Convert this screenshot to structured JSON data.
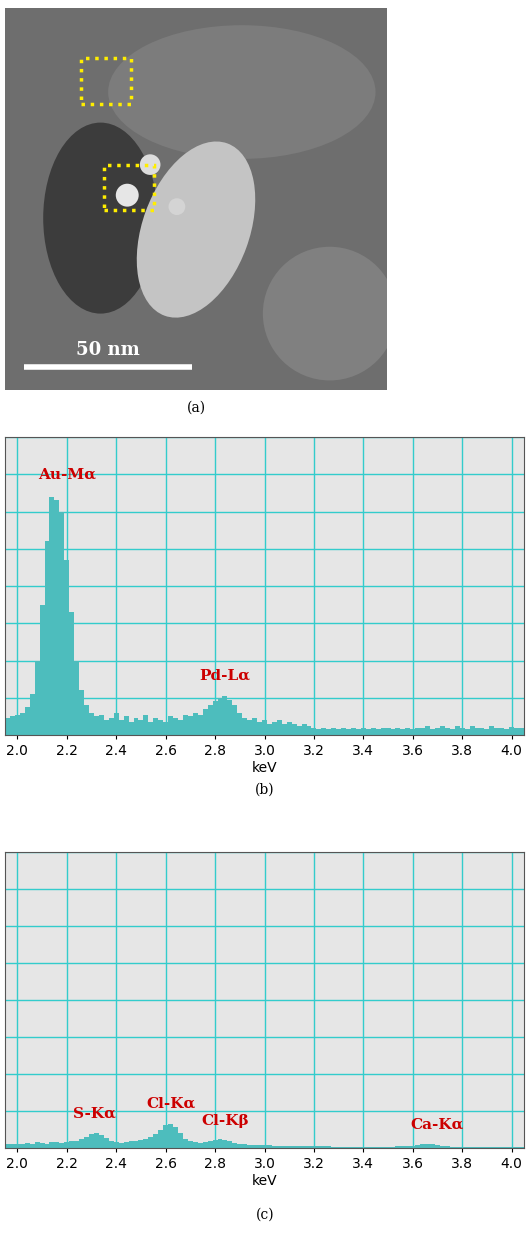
{
  "chart_data": [
    {
      "type": "image",
      "caption": "(a)",
      "scale_bar": "50 nm"
    },
    {
      "type": "bar",
      "caption": "(b)",
      "x_label": "keV",
      "color": "#4dbdbd",
      "grid": true,
      "tick_labels": "x",
      "xlim": [
        1.95,
        4.05
      ],
      "xticks": [
        2.0,
        2.2,
        2.4,
        2.6,
        2.8,
        3.0,
        3.2,
        3.4,
        3.6,
        3.8,
        4.0
      ],
      "ylim": [
        0,
        800
      ],
      "yticks": [
        0,
        100,
        200,
        300,
        400,
        500,
        600,
        700,
        800
      ],
      "x": [
        1.96,
        1.98,
        2.0,
        2.02,
        2.04,
        2.06,
        2.08,
        2.1,
        2.12,
        2.14,
        2.16,
        2.18,
        2.2,
        2.22,
        2.24,
        2.26,
        2.28,
        2.3,
        2.32,
        2.34,
        2.36,
        2.38,
        2.4,
        2.42,
        2.44,
        2.46,
        2.48,
        2.5,
        2.52,
        2.54,
        2.56,
        2.58,
        2.6,
        2.62,
        2.64,
        2.66,
        2.68,
        2.7,
        2.72,
        2.74,
        2.76,
        2.78,
        2.8,
        2.82,
        2.84,
        2.86,
        2.88,
        2.9,
        2.92,
        2.94,
        2.96,
        2.98,
        3.0,
        3.02,
        3.04,
        3.06,
        3.08,
        3.1,
        3.12,
        3.14,
        3.16,
        3.18,
        3.2,
        3.22,
        3.24,
        3.26,
        3.28,
        3.3,
        3.32,
        3.34,
        3.36,
        3.38,
        3.4,
        3.42,
        3.44,
        3.46,
        3.48,
        3.5,
        3.52,
        3.54,
        3.56,
        3.58,
        3.6,
        3.62,
        3.64,
        3.66,
        3.68,
        3.7,
        3.72,
        3.74,
        3.76,
        3.78,
        3.8,
        3.82,
        3.84,
        3.86,
        3.88,
        3.9,
        3.92,
        3.94,
        3.96,
        3.98,
        4.0,
        4.02,
        4.04
      ],
      "values": [
        45,
        50,
        55,
        60,
        75,
        110,
        200,
        350,
        520,
        640,
        630,
        600,
        470,
        330,
        200,
        120,
        80,
        60,
        50,
        55,
        40,
        45,
        60,
        40,
        50,
        35,
        45,
        40,
        55,
        35,
        45,
        40,
        35,
        50,
        45,
        40,
        55,
        50,
        60,
        55,
        70,
        80,
        90,
        100,
        105,
        95,
        80,
        60,
        45,
        40,
        45,
        35,
        40,
        30,
        35,
        40,
        30,
        35,
        30,
        25,
        30,
        25,
        20,
        15,
        18,
        15,
        20,
        15,
        18,
        15,
        20,
        15,
        18,
        15,
        20,
        15,
        18,
        20,
        15,
        18,
        15,
        20,
        15,
        18,
        20,
        25,
        15,
        20,
        25,
        18,
        15,
        25,
        20,
        15,
        25,
        18,
        20,
        15,
        25,
        20,
        18,
        15,
        22,
        20,
        18
      ],
      "annotations": [
        {
          "text": "Au-Mα",
          "x": 2.2,
          "y": 680
        },
        {
          "text": "Pd-Lα",
          "x": 2.84,
          "y": 140
        }
      ]
    },
    {
      "type": "bar",
      "caption": "(c)",
      "x_label": "keV",
      "color": "#4dbdbd",
      "grid": true,
      "tick_labels": "x",
      "xlim": [
        1.95,
        4.05
      ],
      "xticks": [
        2.0,
        2.2,
        2.4,
        2.6,
        2.8,
        3.0,
        3.2,
        3.4,
        3.6,
        3.8,
        4.0
      ],
      "ylim": [
        0,
        800
      ],
      "yticks": [
        0,
        100,
        200,
        300,
        400,
        500,
        600,
        700,
        800
      ],
      "x": [
        1.96,
        1.98,
        2.0,
        2.02,
        2.04,
        2.06,
        2.08,
        2.1,
        2.12,
        2.14,
        2.16,
        2.18,
        2.2,
        2.22,
        2.24,
        2.26,
        2.28,
        2.3,
        2.32,
        2.34,
        2.36,
        2.38,
        2.4,
        2.42,
        2.44,
        2.46,
        2.48,
        2.5,
        2.52,
        2.54,
        2.56,
        2.58,
        2.6,
        2.62,
        2.64,
        2.66,
        2.68,
        2.7,
        2.72,
        2.74,
        2.76,
        2.78,
        2.8,
        2.82,
        2.84,
        2.86,
        2.88,
        2.9,
        2.92,
        2.94,
        2.96,
        2.98,
        3.0,
        3.02,
        3.04,
        3.06,
        3.08,
        3.1,
        3.12,
        3.14,
        3.16,
        3.18,
        3.2,
        3.22,
        3.24,
        3.26,
        3.28,
        3.3,
        3.32,
        3.34,
        3.36,
        3.38,
        3.4,
        3.42,
        3.44,
        3.46,
        3.48,
        3.5,
        3.52,
        3.54,
        3.56,
        3.58,
        3.6,
        3.62,
        3.64,
        3.66,
        3.68,
        3.7,
        3.72,
        3.74,
        3.76,
        3.78,
        3.8,
        3.82,
        3.84,
        3.86,
        3.88,
        3.9,
        3.92,
        3.94,
        3.96,
        3.98,
        4.0,
        4.02,
        4.04
      ],
      "values": [
        12,
        10,
        12,
        10,
        14,
        12,
        15,
        14,
        12,
        16,
        15,
        14,
        16,
        18,
        20,
        25,
        30,
        38,
        40,
        35,
        28,
        20,
        16,
        14,
        15,
        18,
        20,
        22,
        25,
        30,
        38,
        50,
        62,
        65,
        58,
        40,
        25,
        18,
        15,
        14,
        16,
        18,
        22,
        25,
        22,
        18,
        14,
        12,
        10,
        9,
        8,
        8,
        7,
        7,
        6,
        6,
        6,
        5,
        5,
        5,
        5,
        5,
        5,
        5,
        5,
        5,
        4,
        4,
        4,
        4,
        4,
        4,
        4,
        4,
        4,
        4,
        4,
        4,
        4,
        5,
        5,
        5,
        6,
        8,
        10,
        11,
        10,
        8,
        6,
        5,
        4,
        4,
        4,
        4,
        4,
        4,
        4,
        4,
        4,
        4,
        4,
        4,
        4,
        4,
        4
      ],
      "annotations": [
        {
          "text": "S-Kα",
          "x": 2.31,
          "y": 75
        },
        {
          "text": "Cl-Kα",
          "x": 2.62,
          "y": 100
        },
        {
          "text": "Cl-Kβ",
          "x": 2.84,
          "y": 55
        },
        {
          "text": "Ca-Kα",
          "x": 3.7,
          "y": 45
        }
      ]
    }
  ]
}
